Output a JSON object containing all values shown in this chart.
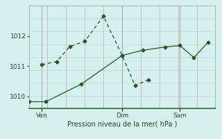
{
  "title": "",
  "xlabel": "Pression niveau de la mer( hPa )",
  "ylabel": "",
  "background_color": "#d6efef",
  "grid_color_h": "#c8dede",
  "grid_color_v": "#d4b8b8",
  "line_color": "#1a5c1a",
  "spine_color": "#2d6e2d",
  "ylim": [
    1009.6,
    1013.0
  ],
  "xlim": [
    0.0,
    10.0
  ],
  "yticks": [
    1010,
    1011,
    1012
  ],
  "xtick_positions": [
    0.7,
    5.0,
    8.1
  ],
  "xtick_labels": [
    "Ven",
    "Dim",
    "Sam"
  ],
  "vlines": [
    0.7,
    5.0,
    8.1
  ],
  "num_hgrid": 8,
  "num_vgrid": 10,
  "line1_x": [
    0.7,
    1.5,
    2.2,
    3.0,
    4.0,
    5.0,
    5.7,
    6.4
  ],
  "line1_y": [
    1011.05,
    1011.15,
    1011.65,
    1011.82,
    1012.65,
    1011.35,
    1010.35,
    1010.55
  ],
  "line2_x": [
    0.0,
    0.9,
    2.8,
    5.0,
    6.1,
    7.3,
    8.1,
    8.85,
    9.6
  ],
  "line2_y": [
    1009.82,
    1009.82,
    1010.4,
    1011.35,
    1011.52,
    1011.63,
    1011.68,
    1011.28,
    1011.78
  ]
}
